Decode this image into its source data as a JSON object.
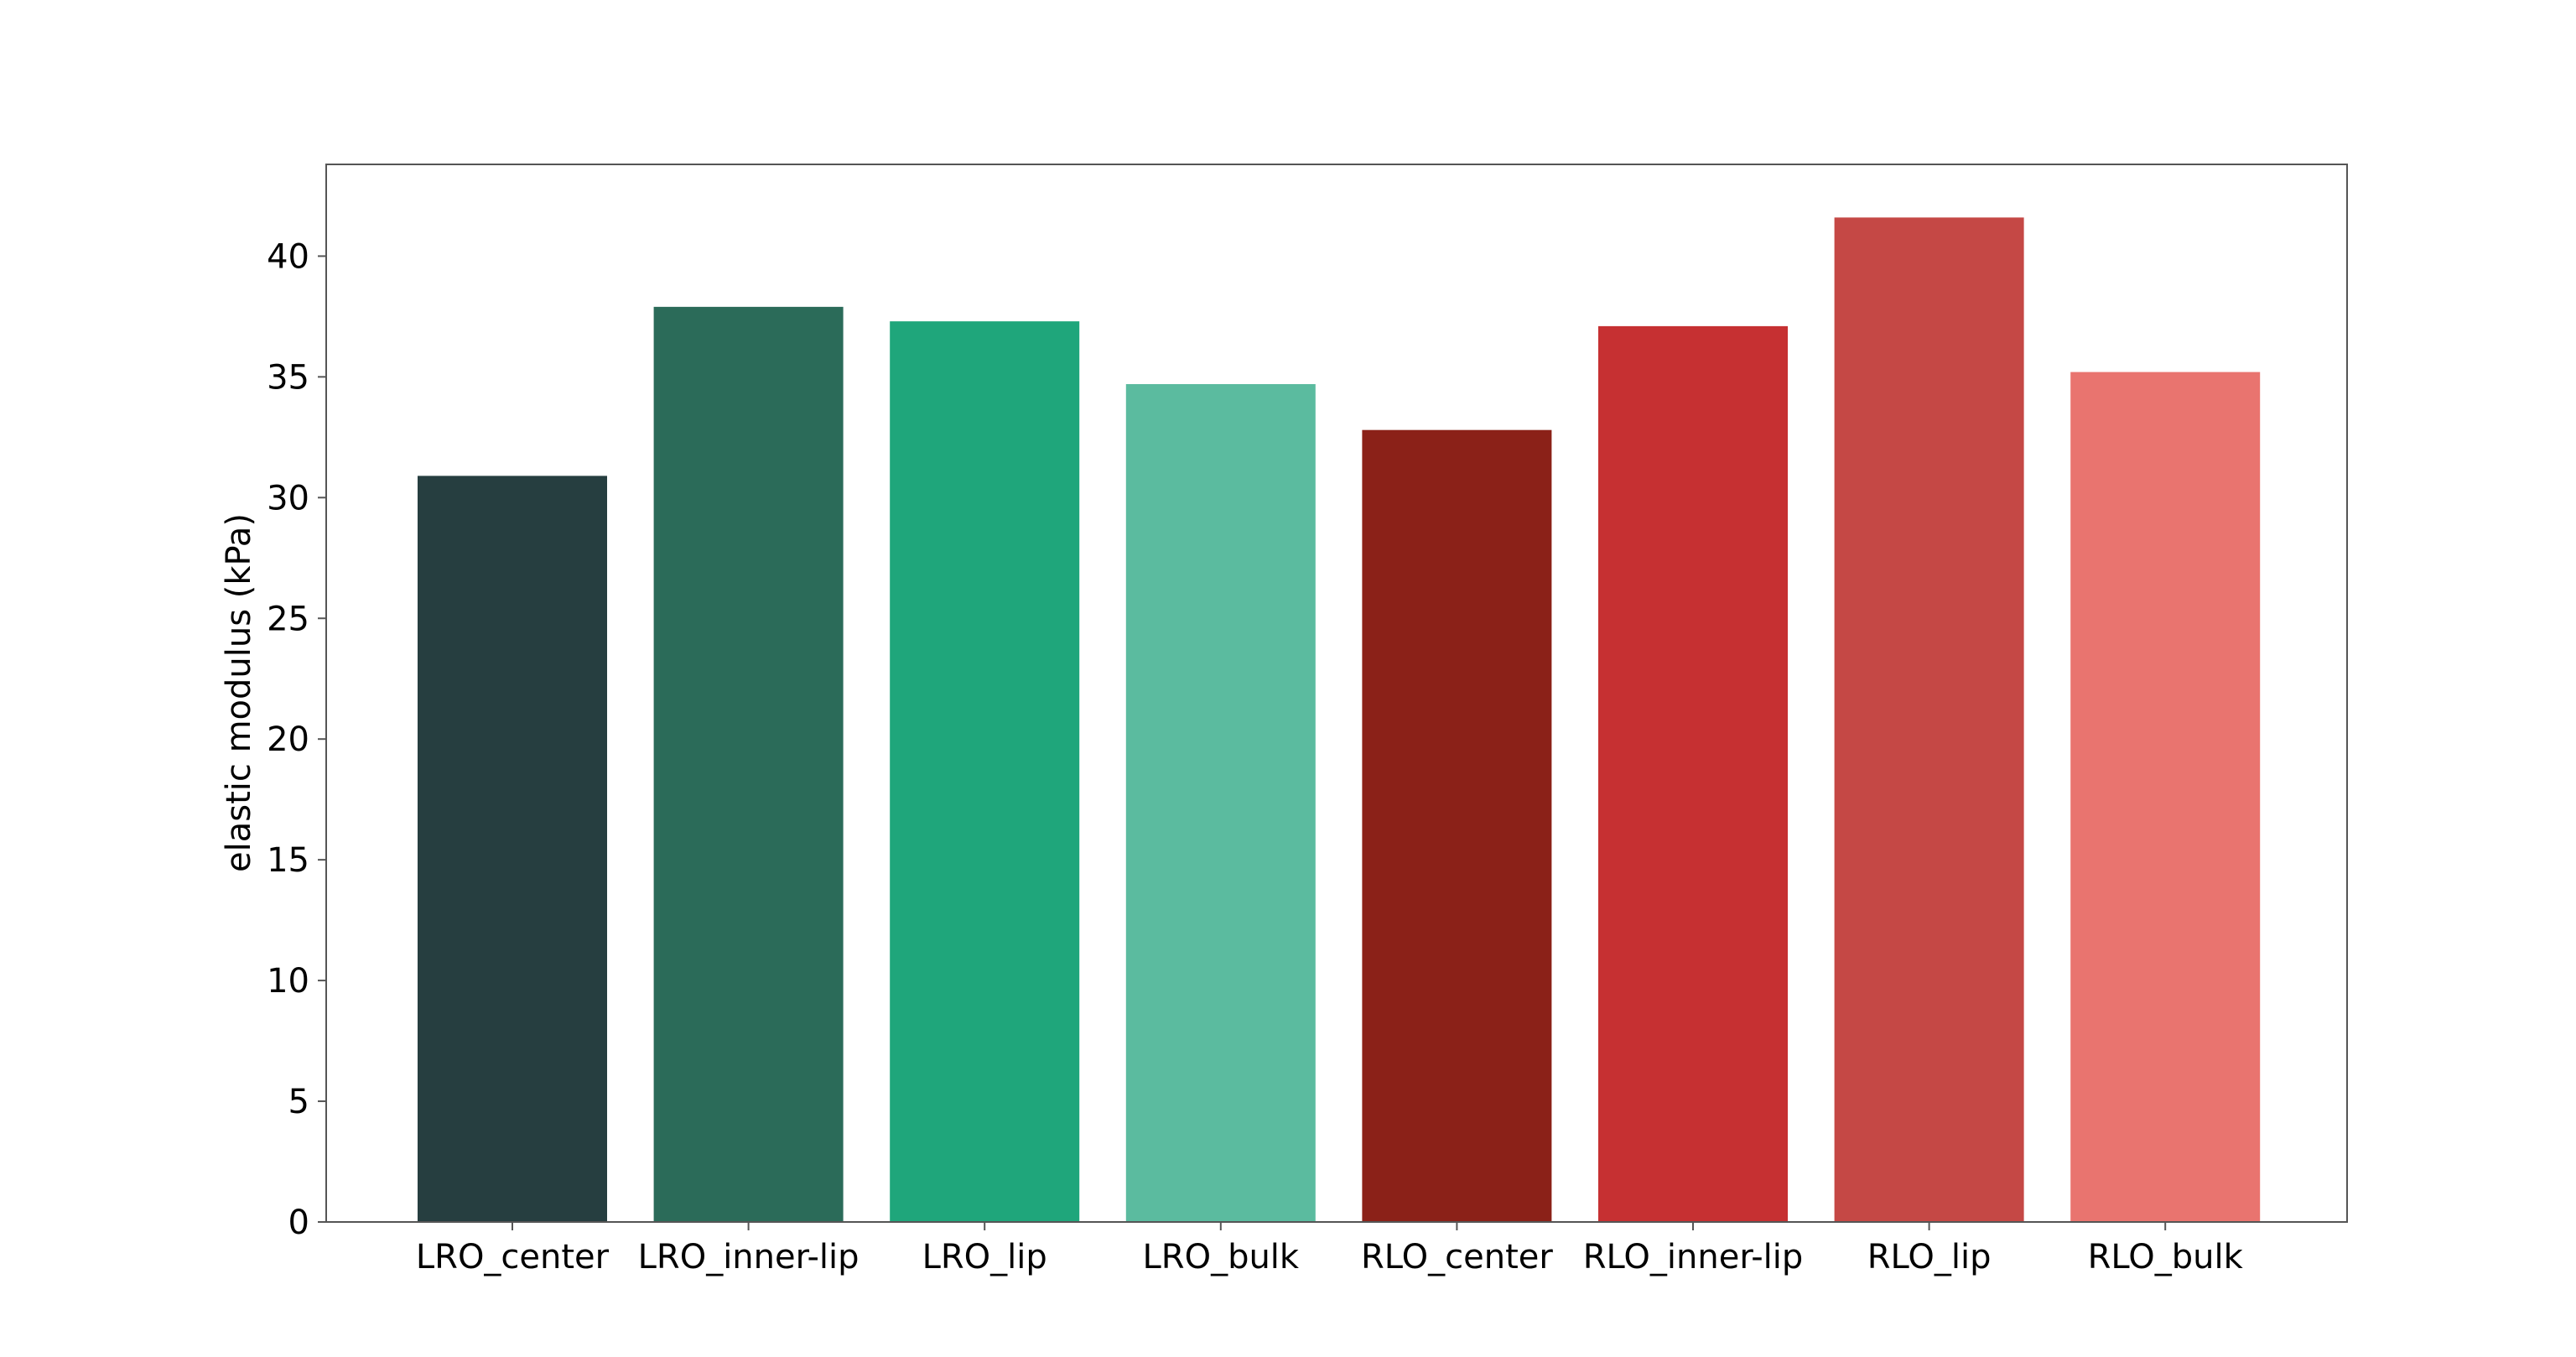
{
  "chart_data": {
    "type": "bar",
    "title": "",
    "xlabel": "",
    "ylabel": "elastic modulus (kPa)",
    "categories": [
      "LRO_center",
      "LRO_inner-lip",
      "LRO_lip",
      "LRO_bulk",
      "RLO_center",
      "RLO_inner-lip",
      "RLO_lip",
      "RLO_bulk"
    ],
    "values": [
      30.9,
      37.9,
      37.3,
      34.7,
      32.8,
      37.1,
      41.6,
      35.2
    ],
    "colors": [
      "#263e40",
      "#2b6b59",
      "#1fa67b",
      "#5bbb9f",
      "#8b2118",
      "#c63032",
      "#c54845",
      "#e9746f"
    ],
    "ylim": [
      0,
      43.8
    ],
    "yticks": [
      0,
      5,
      10,
      15,
      20,
      25,
      30,
      35,
      40
    ],
    "grid": false,
    "legend": "none"
  }
}
